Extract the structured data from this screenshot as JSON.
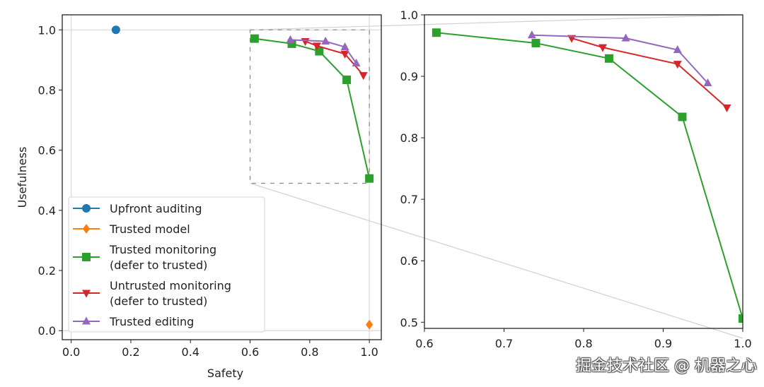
{
  "chart_data": [
    {
      "panel": "overview",
      "type": "line",
      "title": "",
      "xlabel": "Safety",
      "ylabel": "Usefulness",
      "xlim": [
        -0.03,
        1.04
      ],
      "ylim": [
        -0.03,
        1.05
      ],
      "xticks": [
        "0.0",
        "0.2",
        "0.4",
        "0.6",
        "0.8",
        "1.0"
      ],
      "xtick_values": [
        0.0,
        0.2,
        0.4,
        0.6,
        0.8,
        1.0
      ],
      "yticks": [
        "0.0",
        "0.2",
        "0.4",
        "0.6",
        "0.8",
        "1.0"
      ],
      "ytick_values": [
        0.0,
        0.2,
        0.4,
        0.6,
        0.8,
        1.0
      ],
      "grid": false,
      "legend_position": "lower-left",
      "inset_region": {
        "x": [
          0.6,
          1.0
        ],
        "y": [
          0.49,
          1.0
        ]
      },
      "series": [
        {
          "name": "Upfront auditing",
          "color": "#1f77b4",
          "marker": "circle",
          "x": [
            0.15
          ],
          "y": [
            1.0
          ]
        },
        {
          "name": "Trusted model",
          "color": "#ff7f0e",
          "marker": "diamond",
          "x": [
            1.0
          ],
          "y": [
            0.02
          ]
        },
        {
          "name": "Trusted monitoring\n(defer to trusted)",
          "color": "#2ca02c",
          "marker": "square",
          "x": [
            0.615,
            0.74,
            0.832,
            0.924,
            1.0
          ],
          "y": [
            0.971,
            0.954,
            0.929,
            0.834,
            0.506
          ]
        },
        {
          "name": "Untrusted monitoring\n(defer to trusted)",
          "color": "#d62728",
          "marker": "triangle-down",
          "x": [
            0.785,
            0.824,
            0.918,
            0.98
          ],
          "y": [
            0.962,
            0.947,
            0.92,
            0.849
          ]
        },
        {
          "name": "Trusted editing",
          "color": "#9467bd",
          "marker": "triangle-up",
          "x": [
            0.735,
            0.853,
            0.918,
            0.956
          ],
          "y": [
            0.967,
            0.962,
            0.943,
            0.889
          ]
        }
      ],
      "legend": [
        {
          "label_lines": [
            "Upfront auditing"
          ],
          "color": "#1f77b4",
          "marker": "circle"
        },
        {
          "label_lines": [
            "Trusted model"
          ],
          "color": "#ff7f0e",
          "marker": "diamond"
        },
        {
          "label_lines": [
            "Trusted monitoring",
            "(defer to trusted)"
          ],
          "color": "#2ca02c",
          "marker": "square"
        },
        {
          "label_lines": [
            "Untrusted monitoring",
            "(defer to trusted)"
          ],
          "color": "#d62728",
          "marker": "triangle-down"
        },
        {
          "label_lines": [
            "Trusted editing"
          ],
          "color": "#9467bd",
          "marker": "triangle-up"
        }
      ]
    },
    {
      "panel": "zoomed-inset",
      "type": "line",
      "title": "",
      "xlabel": "",
      "ylabel": "",
      "xlim": [
        0.6,
        1.0
      ],
      "ylim": [
        0.49,
        1.0
      ],
      "xticks": [
        "0.6",
        "0.7",
        "0.8",
        "0.9",
        "1.0"
      ],
      "xtick_values": [
        0.6,
        0.7,
        0.8,
        0.9,
        1.0
      ],
      "yticks": [
        "0.5",
        "0.6",
        "0.7",
        "0.8",
        "0.9",
        "1.0"
      ],
      "ytick_values": [
        0.5,
        0.6,
        0.7,
        0.8,
        0.9,
        1.0
      ],
      "grid": false,
      "series": [
        {
          "name": "Trusted monitoring\n(defer to trusted)",
          "color": "#2ca02c",
          "marker": "square",
          "x": [
            0.615,
            0.74,
            0.832,
            0.924,
            1.0
          ],
          "y": [
            0.971,
            0.954,
            0.929,
            0.834,
            0.506
          ]
        },
        {
          "name": "Untrusted monitoring\n(defer to trusted)",
          "color": "#d62728",
          "marker": "triangle-down",
          "x": [
            0.785,
            0.824,
            0.918,
            0.98
          ],
          "y": [
            0.962,
            0.947,
            0.92,
            0.849
          ]
        },
        {
          "name": "Trusted editing",
          "color": "#9467bd",
          "marker": "triangle-up",
          "x": [
            0.735,
            0.853,
            0.918,
            0.956
          ],
          "y": [
            0.967,
            0.962,
            0.943,
            0.889
          ]
        }
      ]
    }
  ],
  "watermark": "掘金技术社区 @ 机器之心"
}
